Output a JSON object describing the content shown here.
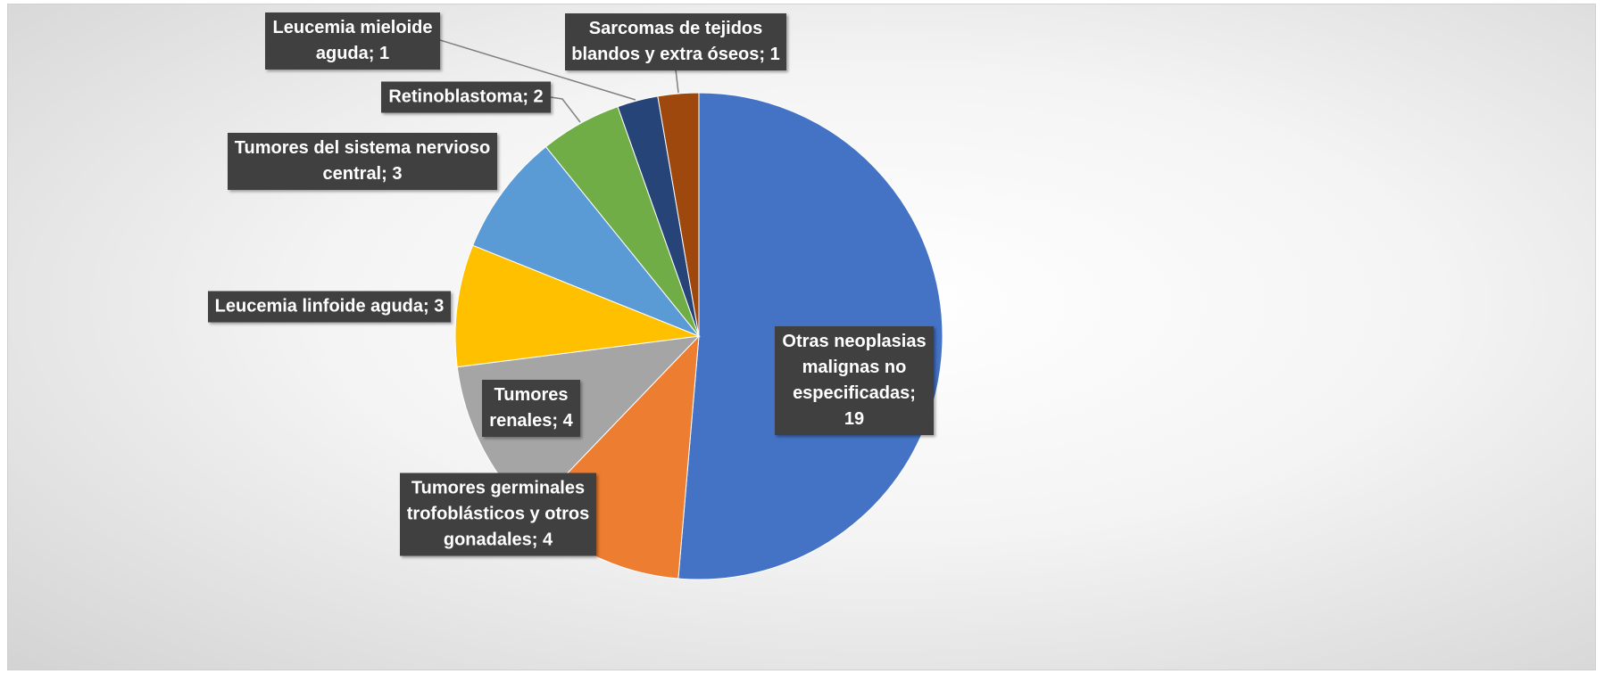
{
  "chart_data": {
    "type": "pie",
    "values": [
      19,
      4,
      4,
      3,
      3,
      2,
      1,
      1
    ],
    "value_labels": [
      "Otras neoplasias malignas no especificadas; 19",
      "Tumores germinales trofoblásticos y otros gonadales; 4",
      "Tumores renales; 4",
      "Leucemia linfoide aguda; 3",
      "Tumores del sistema nervioso central; 3",
      "Retinoblastoma; 2",
      "Leucemia mieloide aguda; 1",
      "Sarcomas de tejidos blandos y extra óseos; 1"
    ],
    "colors": [
      "#4472c4",
      "#ed7d31",
      "#a5a5a5",
      "#ffc000",
      "#5b9bd5",
      "#70ad47",
      "#264478",
      "#9e480e"
    ]
  }
}
